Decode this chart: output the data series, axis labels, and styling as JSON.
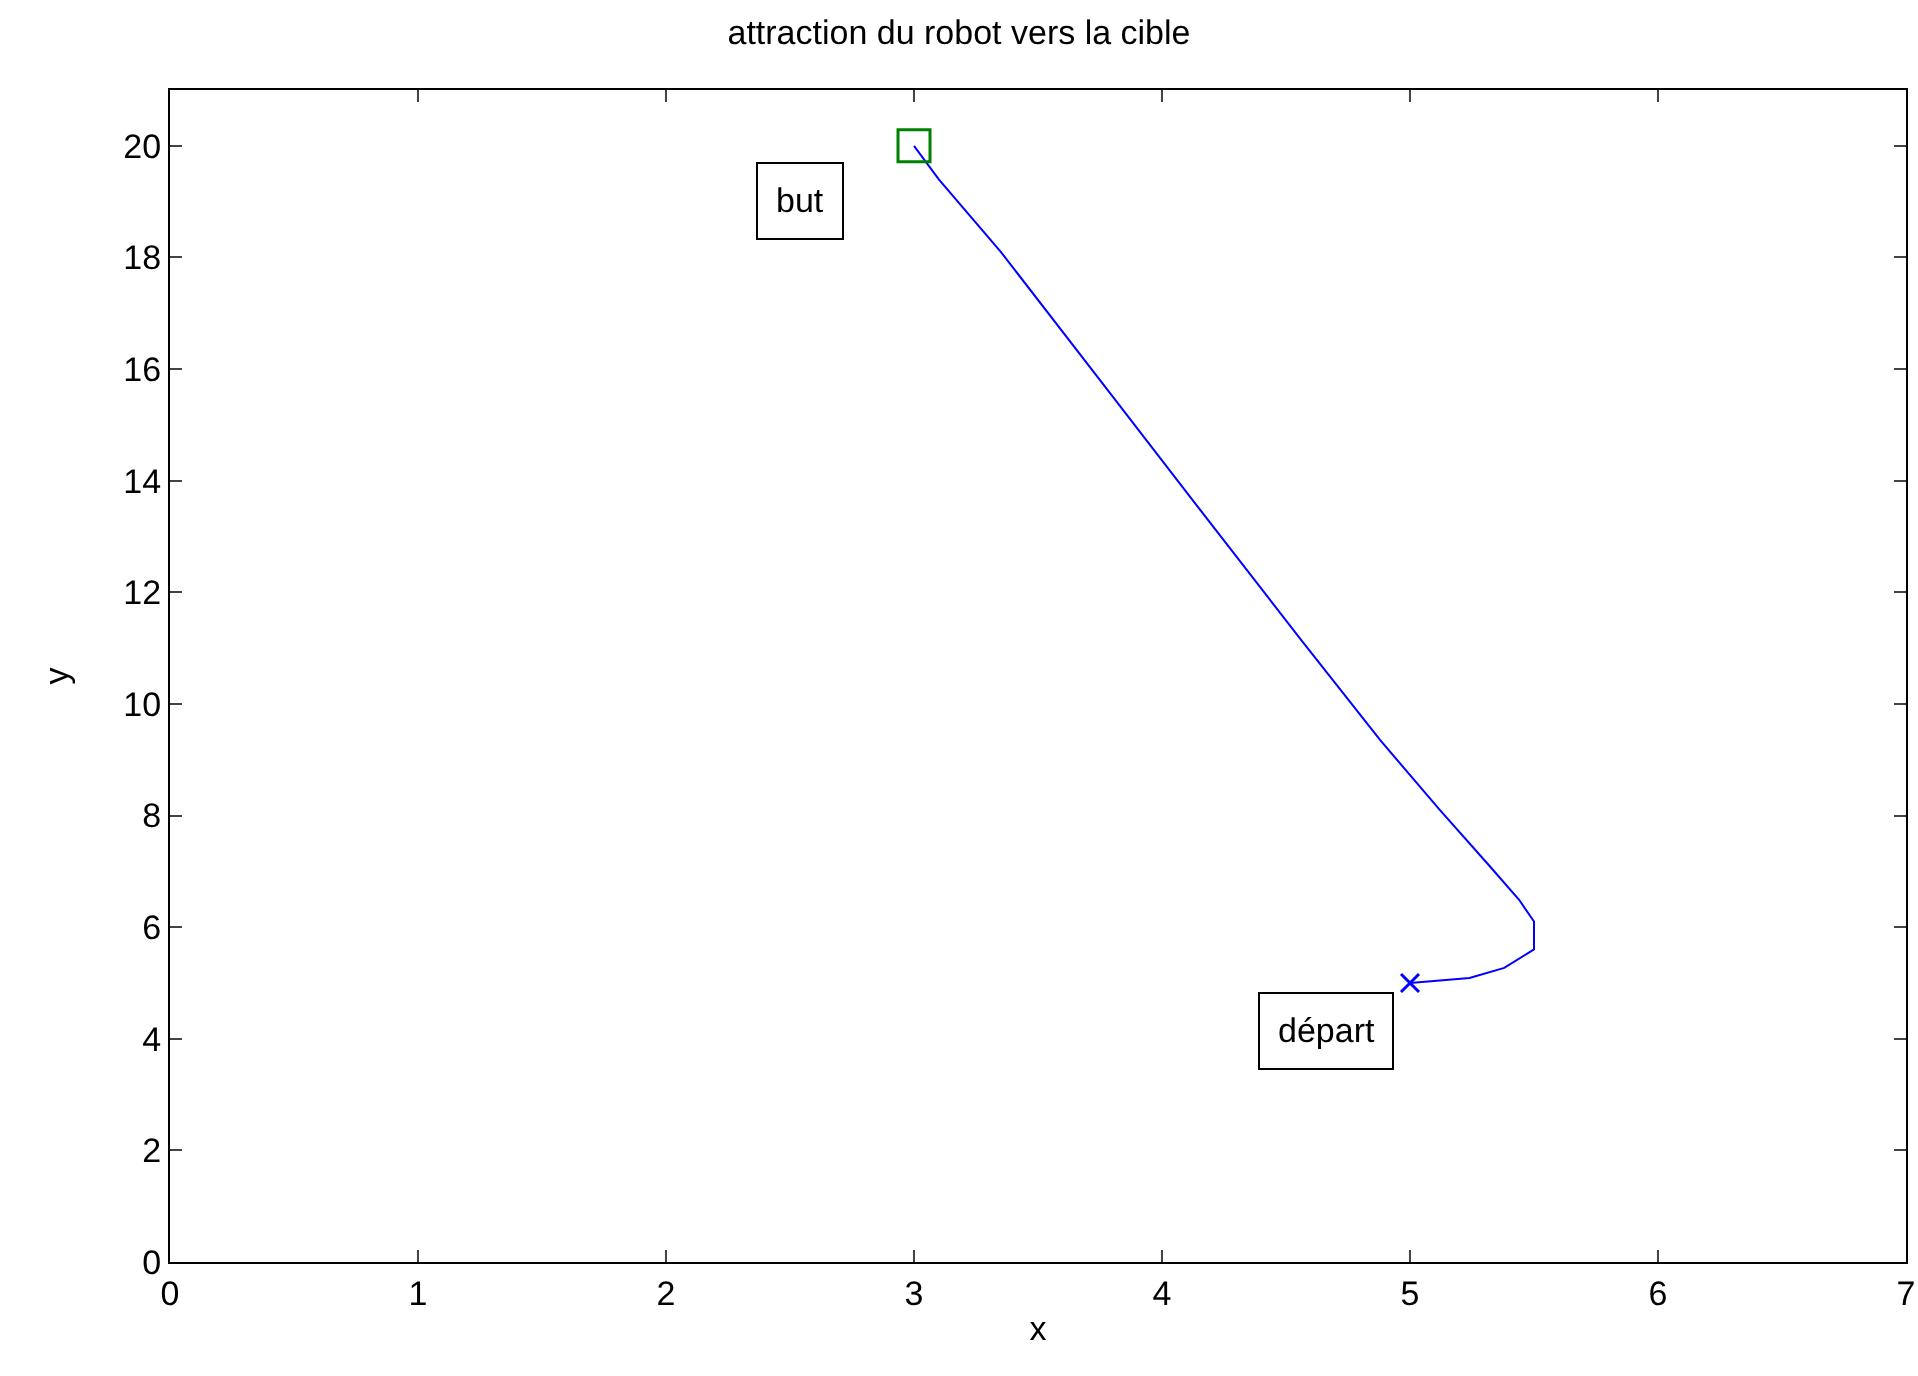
{
  "chart_data": {
    "type": "line",
    "title": "attraction du robot vers la cible",
    "xlabel": "x",
    "ylabel": "y",
    "xlim": [
      0,
      7
    ],
    "xticks": [
      0,
      1,
      2,
      3,
      4,
      5,
      6,
      7
    ],
    "ylim": [
      0,
      21
    ],
    "yticks": [
      0,
      2,
      4,
      6,
      8,
      10,
      12,
      14,
      16,
      18,
      20
    ],
    "grid": false,
    "series": [
      {
        "color": "#0000ff",
        "marker": "none",
        "x": [
          5,
          5.24,
          5.38,
          5.5,
          5.5,
          5.44,
          5.32,
          5.12,
          4.88,
          4.56,
          4.15,
          3.75,
          3.35,
          3.1,
          3
        ],
        "values": [
          5,
          5.09,
          5.27,
          5.6,
          6.1,
          6.49,
          7.1,
          8.1,
          9.35,
          11.15,
          13.5,
          15.8,
          18.1,
          19.4,
          20
        ]
      },
      {
        "type": "scatter",
        "color": "#008000",
        "marker": "square",
        "x": [
          3
        ],
        "values": [
          20
        ]
      },
      {
        "type": "scatter",
        "color": "#0000ff",
        "marker": "cross",
        "x": [
          5
        ],
        "values": [
          5
        ]
      }
    ],
    "annotations": [
      {
        "text": "but",
        "x": 3,
        "y": 20
      },
      {
        "text": "départ",
        "x": 5,
        "y": 5
      }
    ]
  }
}
